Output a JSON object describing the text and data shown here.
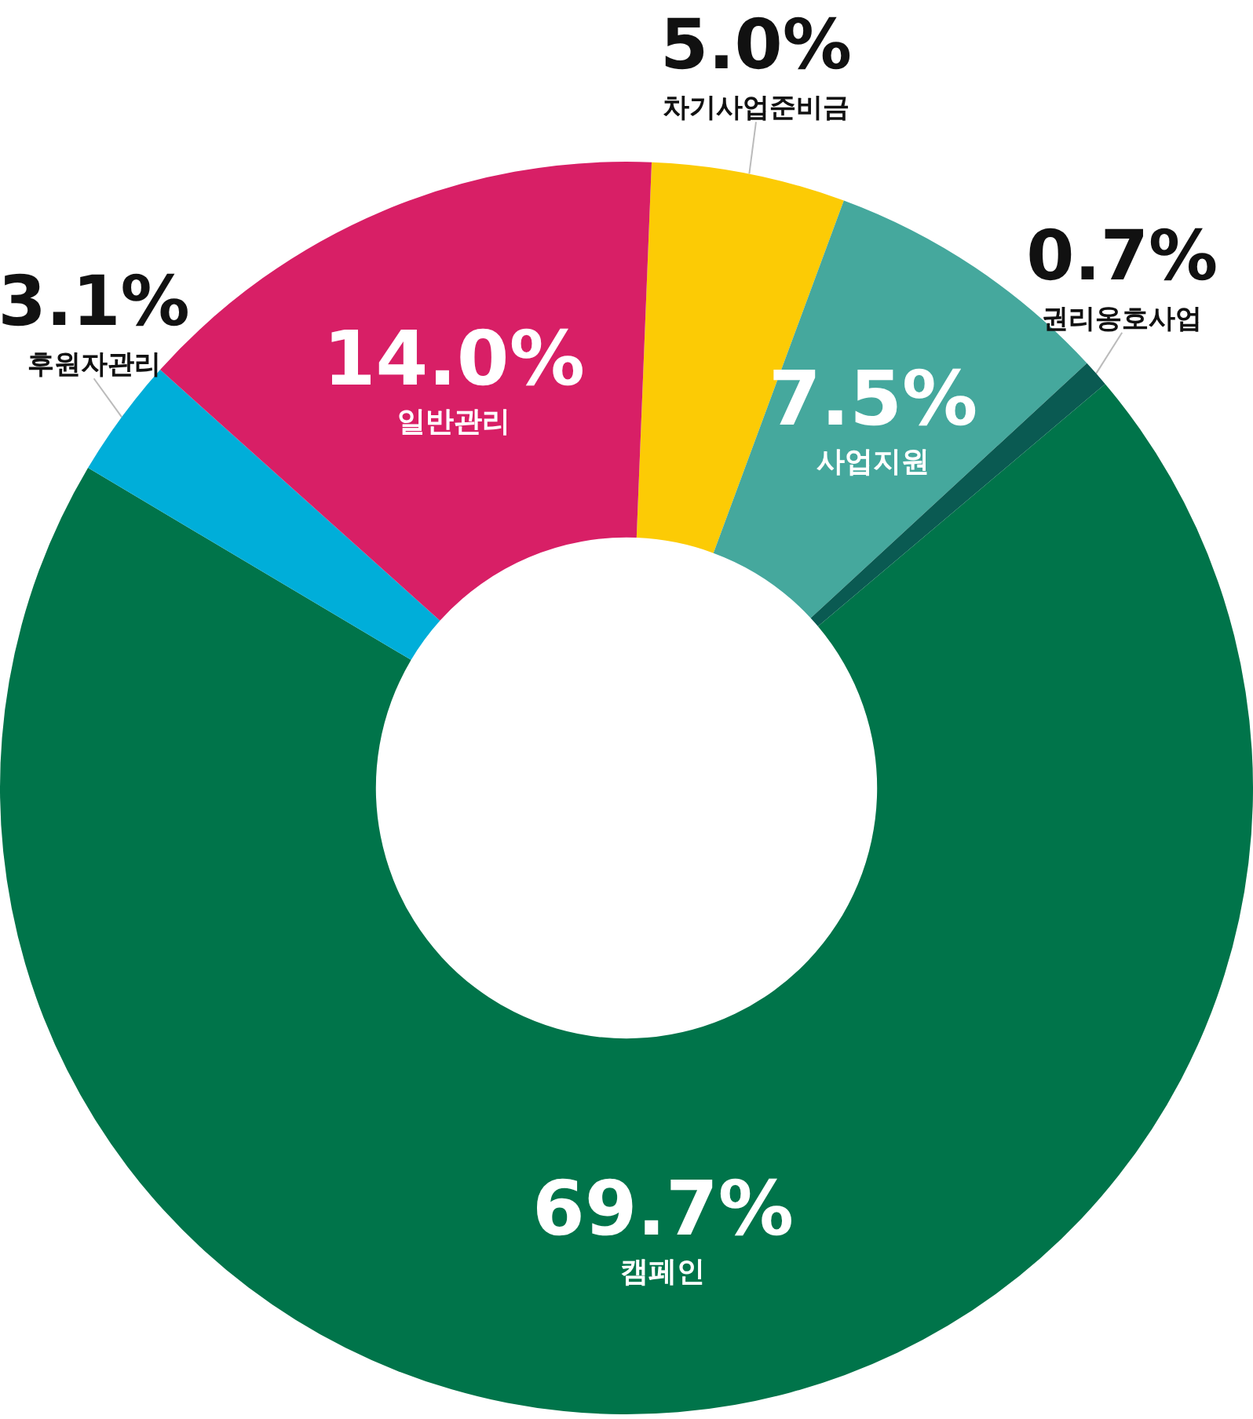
{
  "chart_data": {
    "type": "donut",
    "categories": [
      "차기사업준비금",
      "사업지원",
      "권리옹호사업",
      "캠페인",
      "후원자관리",
      "일반관리"
    ],
    "values": [
      5.0,
      7.5,
      0.7,
      69.7,
      3.1,
      14.0
    ],
    "value_labels": [
      "5.0%",
      "7.5%",
      "0.7%",
      "69.7%",
      "3.1%",
      "14.0%"
    ],
    "colors": [
      "#fccb05",
      "#45a89d",
      "#0a5a52",
      "#00744a",
      "#00aed9",
      "#d81f66"
    ],
    "legend": false
  }
}
